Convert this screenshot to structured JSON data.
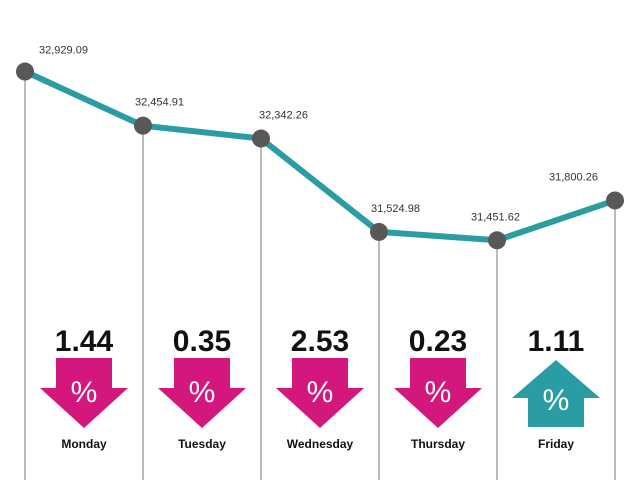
{
  "chart_data": {
    "type": "line",
    "title": "",
    "xlabel": "",
    "ylabel": "",
    "categories": [
      "Monday",
      "Tuesday",
      "Wednesday",
      "Thursday",
      "Friday",
      ""
    ],
    "values": [
      32929.09,
      32454.91,
      32342.26,
      31524.98,
      31451.62,
      31800.26
    ],
    "value_labels": [
      "32,929.09",
      "32,454.91",
      "32,342.26",
      "31,524.98",
      "31,451.62",
      "31,800.26"
    ],
    "ylim": [
      31200,
      33100
    ],
    "grid": false,
    "changes": [
      {
        "day": "Monday",
        "value": "1.44",
        "direction": "down"
      },
      {
        "day": "Tuesday",
        "value": "0.35",
        "direction": "down"
      },
      {
        "day": "Wednesday",
        "value": "2.53",
        "direction": "down"
      },
      {
        "day": "Thursday",
        "value": "0.23",
        "direction": "down"
      },
      {
        "day": "Friday",
        "value": "1.11",
        "direction": "up"
      }
    ],
    "percent_symbol": "%"
  },
  "colors": {
    "line": "#2a9ca3",
    "marker": "#58585a",
    "down": "#d4177c",
    "up": "#2a9ca3",
    "vline": "#777777"
  }
}
